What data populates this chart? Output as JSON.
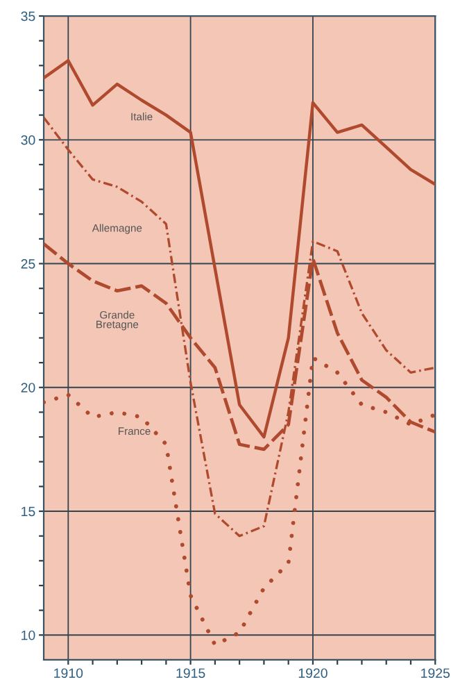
{
  "chart_data": {
    "type": "line",
    "x": [
      1909,
      1910,
      1911,
      1912,
      1913,
      1914,
      1915,
      1916,
      1917,
      1918,
      1919,
      1920,
      1921,
      1922,
      1923,
      1924,
      1925
    ],
    "series": [
      {
        "name": "Italie",
        "color": "#b04a2e",
        "line_style": "solid",
        "values": [
          32.5,
          33.2,
          31.4,
          32.25,
          31.6,
          31.0,
          30.3,
          24.8,
          19.3,
          18.0,
          22.0,
          31.5,
          30.3,
          30.6,
          29.7,
          28.8,
          28.2
        ]
      },
      {
        "name": "Allemagne",
        "color": "#b04a2e",
        "line_style": "dashdot",
        "values": [
          30.9,
          29.6,
          28.4,
          28.1,
          27.5,
          26.6,
          20.2,
          14.9,
          14.0,
          14.4,
          19.0,
          25.9,
          25.5,
          23.0,
          21.5,
          20.6,
          20.8
        ]
      },
      {
        "name": "Grande\nBretagne",
        "color": "#b04a2e",
        "line_style": "dashed",
        "values": [
          25.8,
          25.0,
          24.3,
          23.9,
          24.1,
          23.4,
          22.0,
          20.8,
          17.7,
          17.5,
          18.5,
          25.2,
          22.2,
          20.3,
          19.6,
          18.6,
          18.2
        ]
      },
      {
        "name": "France",
        "color": "#b04a2e",
        "line_style": "dotted",
        "values": [
          19.4,
          19.7,
          18.8,
          19.0,
          18.8,
          17.7,
          11.6,
          9.6,
          10.1,
          11.9,
          12.9,
          21.2,
          20.6,
          19.3,
          19.0,
          18.5,
          18.9
        ]
      }
    ],
    "xlim": [
      1909,
      1925
    ],
    "xticks": [
      1910,
      {
        "value": 1911,
        "label": null
      },
      {
        "value": 1912,
        "label": null
      },
      {
        "value": 1913,
        "label": null
      },
      {
        "value": 1914,
        "label": null
      },
      1915,
      {
        "value": 1916,
        "label": null
      },
      {
        "value": 1917,
        "label": null
      },
      {
        "value": 1918,
        "label": null
      },
      {
        "value": 1919,
        "label": null
      },
      1920,
      {
        "value": 1921,
        "label": null
      },
      {
        "value": 1922,
        "label": null
      },
      {
        "value": 1923,
        "label": null
      },
      {
        "value": 1924,
        "label": null
      },
      1925
    ],
    "ylim": [
      9,
      35
    ],
    "yticks": [
      10,
      {
        "value": 11,
        "label": null
      },
      {
        "value": 12,
        "label": null
      },
      {
        "value": 13,
        "label": null
      },
      {
        "value": 14,
        "label": null
      },
      15,
      {
        "value": 16,
        "label": null
      },
      {
        "value": 17,
        "label": null
      },
      {
        "value": 18,
        "label": null
      },
      {
        "value": 19,
        "label": null
      },
      20,
      {
        "value": 21,
        "label": null
      },
      {
        "value": 22,
        "label": null
      },
      {
        "value": 23,
        "label": null
      },
      {
        "value": 24,
        "label": null
      },
      25,
      {
        "value": 26,
        "label": null
      },
      {
        "value": 27,
        "label": null
      },
      {
        "value": 28,
        "label": null
      },
      {
        "value": 29,
        "label": null
      },
      30,
      {
        "value": 31,
        "label": null
      },
      {
        "value": 32,
        "label": null
      },
      {
        "value": 33,
        "label": null
      },
      {
        "value": 34,
        "label": null
      },
      35
    ],
    "grid": true,
    "legend": false
  }
}
